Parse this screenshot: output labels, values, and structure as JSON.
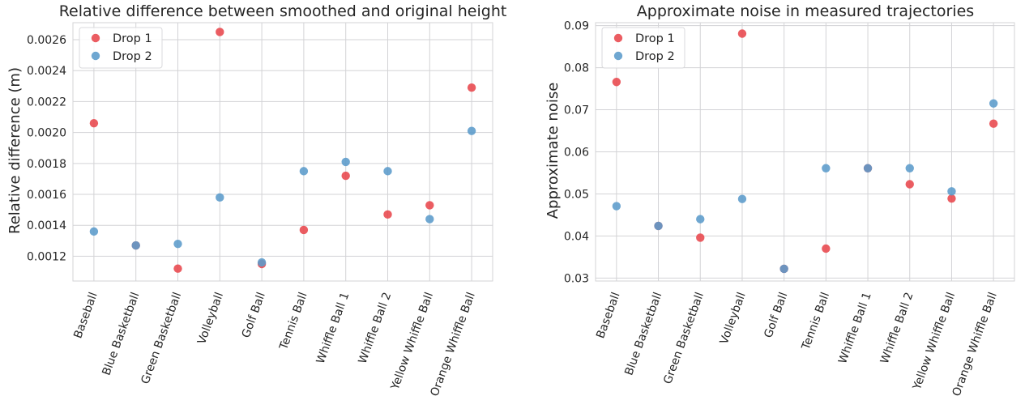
{
  "chart_data": [
    {
      "type": "scatter",
      "title": "Relative difference between smoothed and original height",
      "xlabel": "",
      "ylabel": "Relative difference (m)",
      "categories": [
        "Baseball",
        "Blue Basketball",
        "Green Basketball",
        "Volleyball",
        "Golf Ball",
        "Tennis Ball",
        "Whiffle Ball 1",
        "Whiffle Ball 2",
        "Yellow Whiffle Ball",
        "Orange Whiffle Ball"
      ],
      "series": [
        {
          "name": "Drop 1",
          "color": "#e8474c",
          "values": [
            0.00206,
            0.00127,
            0.00112,
            0.00265,
            0.00115,
            0.00137,
            0.00172,
            0.00147,
            0.00153,
            0.00229
          ]
        },
        {
          "name": "Drop 2",
          "color": "#5b9bcb",
          "values": [
            0.00136,
            0.00127,
            0.00128,
            0.00158,
            0.00116,
            0.00175,
            0.00181,
            0.00175,
            0.00144,
            0.00201
          ]
        }
      ],
      "ylim": [
        0.00104,
        0.00271
      ],
      "yticks": [
        0.0012,
        0.0014,
        0.0016,
        0.0018,
        0.002,
        0.0022,
        0.0024,
        0.0026
      ],
      "ytick_labels": [
        "0.0012",
        "0.0014",
        "0.0016",
        "0.0018",
        "0.0020",
        "0.0022",
        "0.0024",
        "0.0026"
      ],
      "grid": true,
      "legend": "top-left"
    },
    {
      "type": "scatter",
      "title": "Approximate noise in measured trajectories",
      "xlabel": "",
      "ylabel": "Approximate noise",
      "categories": [
        "Baseball",
        "Blue Basketball",
        "Green Basketball",
        "Volleyball",
        "Golf Ball",
        "Tennis Ball",
        "Whiffle Ball 1",
        "Whiffle Ball 2",
        "Yellow Whiffle Ball",
        "Orange Whiffle Ball"
      ],
      "series": [
        {
          "name": "Drop 1",
          "color": "#e8474c",
          "values": [
            0.0766,
            0.0424,
            0.0396,
            0.0881,
            0.0322,
            0.037,
            0.0561,
            0.0523,
            0.0489,
            0.0667
          ]
        },
        {
          "name": "Drop 2",
          "color": "#5b9bcb",
          "values": [
            0.0471,
            0.0424,
            0.044,
            0.0488,
            0.0322,
            0.0561,
            0.0561,
            0.0561,
            0.0506,
            0.0715
          ]
        }
      ],
      "ylim": [
        0.0293,
        0.0907
      ],
      "yticks": [
        0.03,
        0.04,
        0.05,
        0.06,
        0.07,
        0.08,
        0.09
      ],
      "ytick_labels": [
        "0.03",
        "0.04",
        "0.05",
        "0.06",
        "0.07",
        "0.08",
        "0.09"
      ],
      "grid": true,
      "legend": "top-left"
    }
  ]
}
